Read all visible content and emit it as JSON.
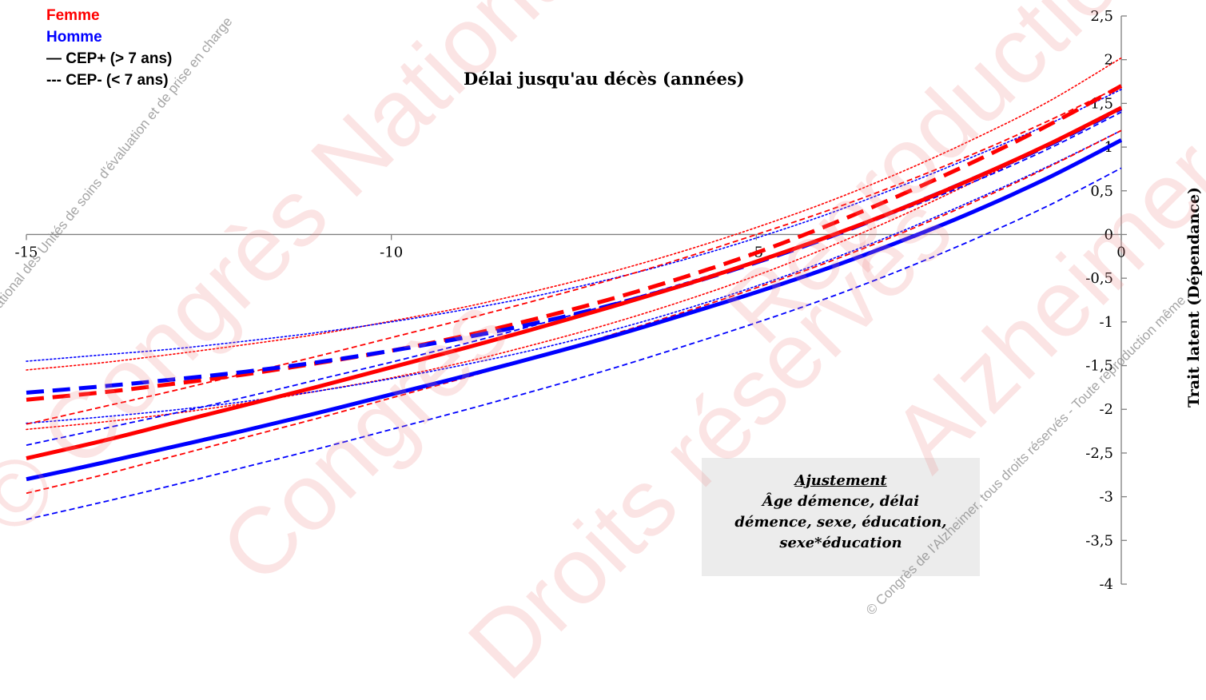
{
  "chart_data": {
    "type": "line",
    "title": "Délai jusqu'au décès (années)",
    "xlabel": "Délai jusqu'au décès (années)",
    "ylabel": "Trait latent (Dépendance)",
    "xlim": [
      -15,
      0
    ],
    "ylim": [
      -4,
      2.5
    ],
    "x_ticks": [
      "-15",
      "-10",
      "-5",
      "0"
    ],
    "y_ticks": [
      "2,5",
      "2",
      "1,5",
      "1",
      "0,5",
      "0",
      "-0,5",
      "-1",
      "-1,5",
      "-2",
      "-2,5",
      "-3",
      "-3,5",
      "-4"
    ],
    "x": [
      -15,
      -14,
      -13,
      -12,
      -11,
      -10,
      -9,
      -8,
      -7,
      -6,
      -5,
      -4,
      -3,
      -2,
      -1,
      0
    ],
    "series": [
      {
        "name": "Femme",
        "group": "CEP+ (> 7 ans)",
        "role": "estimate",
        "color": "#ff0000",
        "style": "solid",
        "values": [
          -2.56,
          -2.37,
          -2.16,
          -1.95,
          -1.74,
          -1.52,
          -1.3,
          -1.07,
          -0.83,
          -0.58,
          -0.31,
          -0.02,
          0.3,
          0.65,
          1.03,
          1.45
        ]
      },
      {
        "name": "Femme",
        "group": "CEP+ (> 7 ans)",
        "role": "ci-lower",
        "color": "#ff0000",
        "style": "dashed-thin",
        "values": [
          -2.96,
          -2.76,
          -2.54,
          -2.32,
          -2.1,
          -1.87,
          -1.64,
          -1.4,
          -1.15,
          -0.89,
          -0.61,
          -0.31,
          0.02,
          0.38,
          0.77,
          1.19
        ]
      },
      {
        "name": "Femme",
        "group": "CEP+ (> 7 ans)",
        "role": "ci-upper",
        "color": "#ff0000",
        "style": "dashed-thin",
        "values": [
          -2.17,
          -1.98,
          -1.79,
          -1.59,
          -1.39,
          -1.18,
          -0.97,
          -0.75,
          -0.52,
          -0.27,
          0.0,
          0.28,
          0.59,
          0.93,
          1.3,
          1.7
        ]
      },
      {
        "name": "Femme",
        "group": "CEP- (< 7 ans)",
        "role": "estimate",
        "color": "#ff0000",
        "style": "dashed-thick",
        "values": [
          -1.89,
          -1.81,
          -1.71,
          -1.6,
          -1.47,
          -1.33,
          -1.16,
          -0.96,
          -0.74,
          -0.49,
          -0.21,
          0.11,
          0.46,
          0.84,
          1.25,
          1.7
        ]
      },
      {
        "name": "Femme",
        "group": "CEP- (< 7 ans)",
        "role": "ci-lower",
        "color": "#ff0000",
        "style": "dotted",
        "values": [
          -2.23,
          -2.15,
          -2.05,
          -1.93,
          -1.79,
          -1.64,
          -1.46,
          -1.25,
          -1.02,
          -0.76,
          -0.47,
          -0.14,
          0.22,
          0.61,
          1.02,
          1.44
        ]
      },
      {
        "name": "Femme",
        "group": "CEP- (< 7 ans)",
        "role": "ci-upper",
        "color": "#ff0000",
        "style": "dotted",
        "values": [
          -1.55,
          -1.47,
          -1.37,
          -1.26,
          -1.14,
          -0.99,
          -0.83,
          -0.64,
          -0.43,
          -0.19,
          0.08,
          0.38,
          0.72,
          1.1,
          1.52,
          2.02
        ]
      },
      {
        "name": "Homme",
        "group": "CEP+ (> 7 ans)",
        "role": "estimate",
        "color": "#0000ff",
        "style": "solid",
        "values": [
          -2.8,
          -2.62,
          -2.43,
          -2.24,
          -2.04,
          -1.83,
          -1.62,
          -1.4,
          -1.17,
          -0.92,
          -0.66,
          -0.38,
          -0.07,
          0.27,
          0.65,
          1.08
        ]
      },
      {
        "name": "Homme",
        "group": "CEP+ (> 7 ans)",
        "role": "ci-lower",
        "color": "#0000ff",
        "style": "dashed-thin",
        "values": [
          -3.26,
          -3.07,
          -2.87,
          -2.66,
          -2.45,
          -2.23,
          -2.01,
          -1.78,
          -1.54,
          -1.28,
          -1.01,
          -0.72,
          -0.4,
          -0.05,
          0.33,
          0.76
        ]
      },
      {
        "name": "Homme",
        "group": "CEP+ (> 7 ans)",
        "role": "ci-upper",
        "color": "#0000ff",
        "style": "dashed-thin",
        "values": [
          -2.41,
          -2.23,
          -2.05,
          -1.86,
          -1.66,
          -1.46,
          -1.25,
          -1.03,
          -0.8,
          -0.56,
          -0.3,
          -0.02,
          0.28,
          0.61,
          0.98,
          1.4
        ]
      },
      {
        "name": "Homme",
        "group": "CEP- (< 7 ans)",
        "role": "estimate",
        "color": "#0000ff",
        "style": "dashed-thick",
        "values": [
          -1.81,
          -1.74,
          -1.66,
          -1.57,
          -1.46,
          -1.33,
          -1.18,
          -1.01,
          -0.81,
          -0.58,
          -0.32,
          -0.03,
          0.3,
          0.65,
          1.02,
          1.44
        ]
      },
      {
        "name": "Homme",
        "group": "CEP- (< 7 ans)",
        "role": "ci-lower",
        "color": "#0000ff",
        "style": "dotted",
        "values": [
          -2.16,
          -2.09,
          -2.01,
          -1.91,
          -1.79,
          -1.65,
          -1.49,
          -1.31,
          -1.1,
          -0.86,
          -0.59,
          -0.29,
          0.04,
          0.4,
          0.78,
          1.19
        ]
      },
      {
        "name": "Homme",
        "group": "CEP- (< 7 ans)",
        "role": "ci-upper",
        "color": "#0000ff",
        "style": "dotted",
        "values": [
          -1.45,
          -1.38,
          -1.31,
          -1.22,
          -1.12,
          -1.0,
          -0.86,
          -0.7,
          -0.51,
          -0.29,
          -0.04,
          0.24,
          0.56,
          0.9,
          1.26,
          1.66
        ]
      }
    ],
    "legend": {
      "position": "top-left",
      "entries": [
        {
          "label": "Femme",
          "color": "#ff0000"
        },
        {
          "label": "Homme",
          "color": "#0000ff"
        },
        {
          "label": "— CEP+ (> 7 ans)",
          "color": "#000000"
        },
        {
          "label": "--- CEP- (< 7 ans)",
          "color": "#000000"
        }
      ]
    },
    "annotation": {
      "heading": "Ajustement",
      "lines": [
        "Âge démence, délai",
        "démence, sexe, éducation,",
        "sexe*éducation"
      ]
    },
    "grid": false
  },
  "watermarks": {
    "small_left": "© National des Unités de soins d'évaluation et de prise en charge",
    "small_right": "© Congrès de l'Alzheimer, tous droits réservés - Toute reproduction même",
    "big": [
      "© Congrès National",
      "Congrès",
      "Droits réservés",
      "Alzheimer",
      "Reproduction"
    ]
  },
  "colors": {
    "femme": "#ff0000",
    "homme": "#0000ff",
    "axis": "#808080",
    "annotation_bg": "#ececec"
  }
}
